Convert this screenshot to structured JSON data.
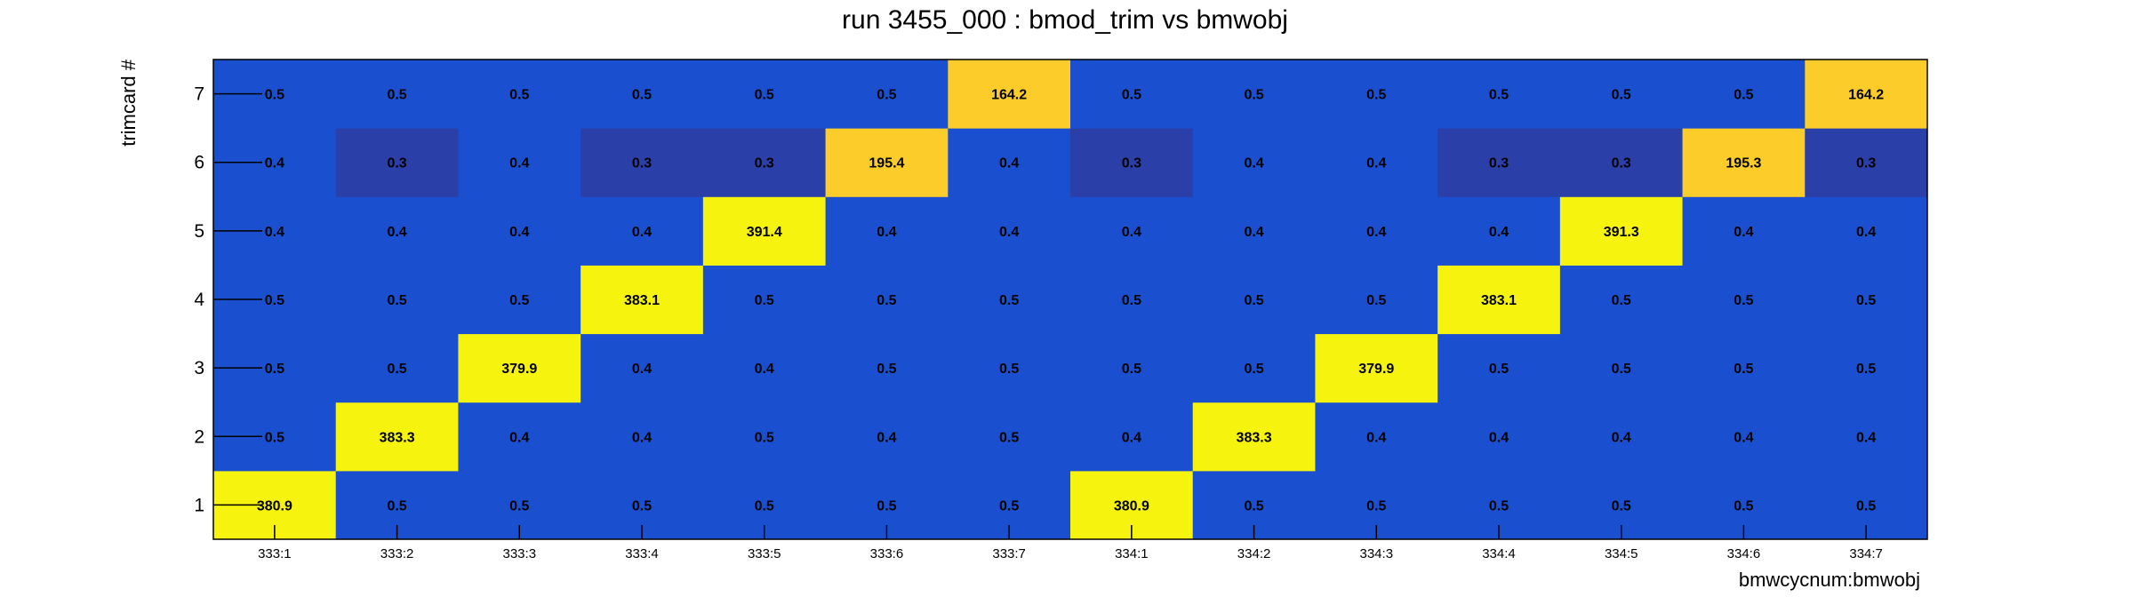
{
  "chart_data": {
    "type": "heatmap",
    "title": "run 3455_000 : bmod_trim vs bmwobj",
    "xlabel": "bmwcycnum:bmwobj",
    "ylabel": "trimcard #",
    "x_categories": [
      "333:1",
      "333:2",
      "333:3",
      "333:4",
      "333:5",
      "333:6",
      "333:7",
      "334:1",
      "334:2",
      "334:3",
      "334:4",
      "334:5",
      "334:6",
      "334:7"
    ],
    "y_categories": [
      "1",
      "2",
      "3",
      "4",
      "5",
      "6",
      "7"
    ],
    "values": [
      [
        380.9,
        0.5,
        0.5,
        0.5,
        0.5,
        0.5,
        0.5,
        380.9,
        0.5,
        0.5,
        0.5,
        0.5,
        0.5,
        0.5
      ],
      [
        0.5,
        383.3,
        0.4,
        0.4,
        0.5,
        0.4,
        0.5,
        0.4,
        383.3,
        0.4,
        0.4,
        0.4,
        0.4,
        0.4
      ],
      [
        0.5,
        0.5,
        379.9,
        0.4,
        0.4,
        0.5,
        0.5,
        0.5,
        0.5,
        379.9,
        0.5,
        0.5,
        0.5,
        0.5
      ],
      [
        0.5,
        0.5,
        0.5,
        383.1,
        0.5,
        0.5,
        0.5,
        0.5,
        0.5,
        0.5,
        383.1,
        0.5,
        0.5,
        0.5
      ],
      [
        0.4,
        0.4,
        0.4,
        0.4,
        391.4,
        0.4,
        0.4,
        0.4,
        0.4,
        0.4,
        0.4,
        391.3,
        0.4,
        0.4
      ],
      [
        0.4,
        0.3,
        0.4,
        0.3,
        0.3,
        195.4,
        0.4,
        0.3,
        0.4,
        0.4,
        0.3,
        0.3,
        195.3,
        0.3
      ],
      [
        0.5,
        0.5,
        0.5,
        0.5,
        0.5,
        0.5,
        164.2,
        0.5,
        0.5,
        0.5,
        0.5,
        0.5,
        0.5,
        164.2
      ]
    ],
    "colors": {
      "high": "#f6f30f",
      "mid_high": "#fbcc2a",
      "low": "#1a50d0",
      "lowest": "#2a3fa8"
    },
    "grid": false,
    "legend": "none"
  }
}
